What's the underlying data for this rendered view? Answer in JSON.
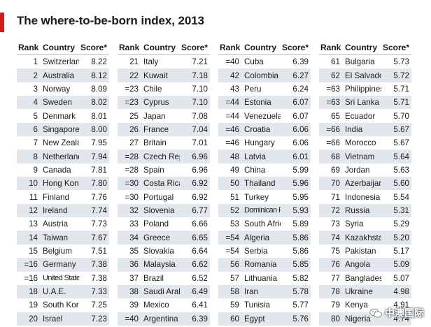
{
  "title": "The where-to-be-born index, 2013",
  "headers": {
    "rank": "Rank",
    "country": "Country",
    "score": "Score*"
  },
  "watermark": {
    "text": "中澳国际",
    "icon": "wechat-icon"
  },
  "accent_color": "#d7191c",
  "row_shade_color": "#e2e7ee",
  "columns": [
    {
      "rows": [
        {
          "rank": "1",
          "country": "Switzerland",
          "score": "8.22"
        },
        {
          "rank": "2",
          "country": "Australia",
          "score": "8.12"
        },
        {
          "rank": "3",
          "country": "Norway",
          "score": "8.09"
        },
        {
          "rank": "4",
          "country": "Sweden",
          "score": "8.02"
        },
        {
          "rank": "5",
          "country": "Denmark",
          "score": "8.01"
        },
        {
          "rank": "6",
          "country": "Singapore",
          "score": "8.00"
        },
        {
          "rank": "7",
          "country": "New Zealand",
          "score": "7.95"
        },
        {
          "rank": "8",
          "country": "Netherlands",
          "score": "7.94"
        },
        {
          "rank": "9",
          "country": "Canada",
          "score": "7.81"
        },
        {
          "rank": "10",
          "country": "Hong Kong",
          "score": "7.80"
        },
        {
          "rank": "11",
          "country": "Finland",
          "score": "7.76"
        },
        {
          "rank": "12",
          "country": "Ireland",
          "score": "7.74"
        },
        {
          "rank": "13",
          "country": "Austria",
          "score": "7.73"
        },
        {
          "rank": "14",
          "country": "Taiwan",
          "score": "7.67"
        },
        {
          "rank": "15",
          "country": "Belgium",
          "score": "7.51"
        },
        {
          "rank": "=16",
          "country": "Germany",
          "score": "7.38"
        },
        {
          "rank": "=16",
          "country": "United States",
          "score": "7.38"
        },
        {
          "rank": "18",
          "country": "U.A.E.",
          "score": "7.33"
        },
        {
          "rank": "19",
          "country": "South Korea",
          "score": "7.25"
        },
        {
          "rank": "20",
          "country": "Israel",
          "score": "7.23"
        }
      ]
    },
    {
      "rows": [
        {
          "rank": "21",
          "country": "Italy",
          "score": "7.21"
        },
        {
          "rank": "22",
          "country": "Kuwait",
          "score": "7.18"
        },
        {
          "rank": "=23",
          "country": "Chile",
          "score": "7.10"
        },
        {
          "rank": "=23",
          "country": "Cyprus",
          "score": "7.10"
        },
        {
          "rank": "25",
          "country": "Japan",
          "score": "7.08"
        },
        {
          "rank": "26",
          "country": "France",
          "score": "7.04"
        },
        {
          "rank": "27",
          "country": "Britain",
          "score": "7.01"
        },
        {
          "rank": "=28",
          "country": "Czech Rep.",
          "score": "6.96"
        },
        {
          "rank": "=28",
          "country": "Spain",
          "score": "6.96"
        },
        {
          "rank": "=30",
          "country": "Costa Rica",
          "score": "6.92"
        },
        {
          "rank": "=30",
          "country": "Portugal",
          "score": "6.92"
        },
        {
          "rank": "32",
          "country": "Slovenia",
          "score": "6.77"
        },
        {
          "rank": "33",
          "country": "Poland",
          "score": "6.66"
        },
        {
          "rank": "34",
          "country": "Greece",
          "score": "6.65"
        },
        {
          "rank": "35",
          "country": "Slovakia",
          "score": "6.64"
        },
        {
          "rank": "36",
          "country": "Malaysia",
          "score": "6.62"
        },
        {
          "rank": "37",
          "country": "Brazil",
          "score": "6.52"
        },
        {
          "rank": "38",
          "country": "Saudi Arabia",
          "score": "6.49"
        },
        {
          "rank": "39",
          "country": "Mexico",
          "score": "6.41"
        },
        {
          "rank": "=40",
          "country": "Argentina",
          "score": "6.39"
        }
      ]
    },
    {
      "rows": [
        {
          "rank": "=40",
          "country": "Cuba",
          "score": "6.39"
        },
        {
          "rank": "42",
          "country": "Colombia",
          "score": "6.27"
        },
        {
          "rank": "43",
          "country": "Peru",
          "score": "6.24"
        },
        {
          "rank": "=44",
          "country": "Estonia",
          "score": "6.07"
        },
        {
          "rank": "=44",
          "country": "Venezuela",
          "score": "6.07"
        },
        {
          "rank": "=46",
          "country": "Croatia",
          "score": "6.06"
        },
        {
          "rank": "=46",
          "country": "Hungary",
          "score": "6.06"
        },
        {
          "rank": "48",
          "country": "Latvia",
          "score": "6.01"
        },
        {
          "rank": "49",
          "country": "China",
          "score": "5.99"
        },
        {
          "rank": "50",
          "country": "Thailand",
          "score": "5.96"
        },
        {
          "rank": "51",
          "country": "Turkey",
          "score": "5.95"
        },
        {
          "rank": "52",
          "country": "Dominican Rep.",
          "score": "5.93"
        },
        {
          "rank": "53",
          "country": "South Africa",
          "score": "5.89"
        },
        {
          "rank": "=54",
          "country": "Algeria",
          "score": "5.86"
        },
        {
          "rank": "=54",
          "country": "Serbia",
          "score": "5.86"
        },
        {
          "rank": "56",
          "country": "Romania",
          "score": "5.85"
        },
        {
          "rank": "57",
          "country": "Lithuania",
          "score": "5.82"
        },
        {
          "rank": "58",
          "country": "Iran",
          "score": "5.78"
        },
        {
          "rank": "59",
          "country": "Tunisia",
          "score": "5.77"
        },
        {
          "rank": "60",
          "country": "Egypt",
          "score": "5.76"
        }
      ]
    },
    {
      "rows": [
        {
          "rank": "61",
          "country": "Bulgaria",
          "score": "5.73"
        },
        {
          "rank": "62",
          "country": "El Salvador",
          "score": "5.72"
        },
        {
          "rank": "=63",
          "country": "Philippines",
          "score": "5.71"
        },
        {
          "rank": "=63",
          "country": "Sri Lanka",
          "score": "5.71"
        },
        {
          "rank": "65",
          "country": "Ecuador",
          "score": "5.70"
        },
        {
          "rank": "=66",
          "country": "India",
          "score": "5.67"
        },
        {
          "rank": "=66",
          "country": "Morocco",
          "score": "5.67"
        },
        {
          "rank": "68",
          "country": "Vietnam",
          "score": "5.64"
        },
        {
          "rank": "69",
          "country": "Jordan",
          "score": "5.63"
        },
        {
          "rank": "70",
          "country": "Azerbaijan",
          "score": "5.60"
        },
        {
          "rank": "71",
          "country": "Indonesia",
          "score": "5.54"
        },
        {
          "rank": "72",
          "country": "Russia",
          "score": "5.31"
        },
        {
          "rank": "73",
          "country": "Syria",
          "score": "5.29"
        },
        {
          "rank": "74",
          "country": "Kazakhstan",
          "score": "5.20"
        },
        {
          "rank": "75",
          "country": "Pakistan",
          "score": "5.17"
        },
        {
          "rank": "76",
          "country": "Angola",
          "score": "5.09"
        },
        {
          "rank": "77",
          "country": "Bangladesh",
          "score": "5.07"
        },
        {
          "rank": "78",
          "country": "Ukraine",
          "score": "4.98"
        },
        {
          "rank": "79",
          "country": "Kenya",
          "score": "4.91"
        },
        {
          "rank": "80",
          "country": "Nigeria",
          "score": "4.74"
        }
      ]
    }
  ]
}
